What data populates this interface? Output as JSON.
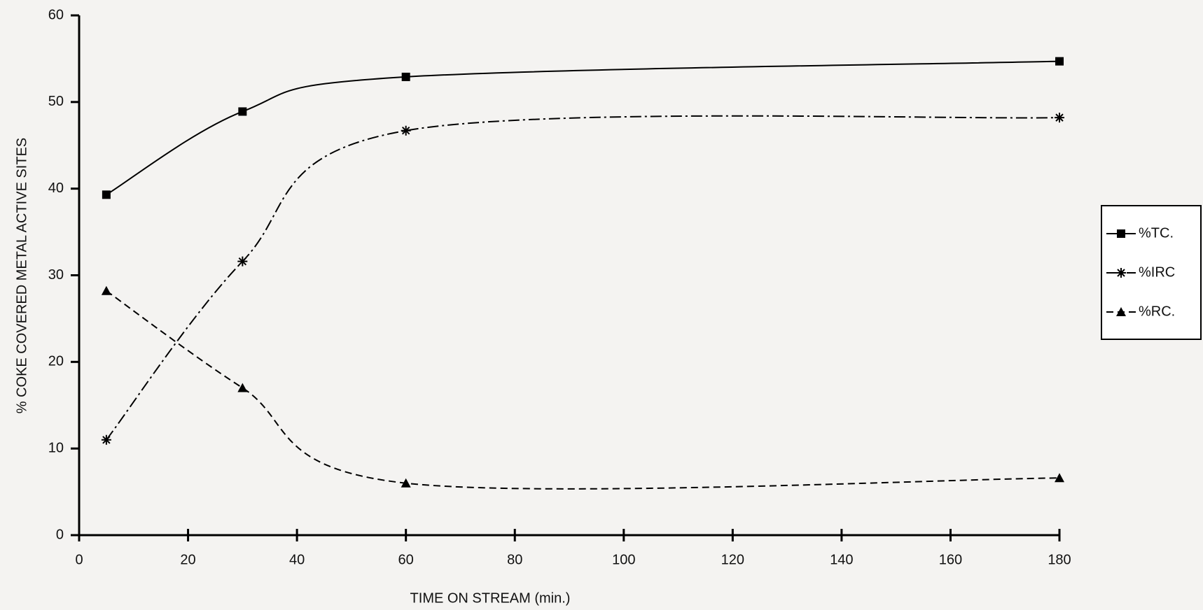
{
  "chart_data": {
    "type": "line",
    "x_label": "TIME ON STREAM (min.)",
    "y_label": "% COKE COVERED METAL ACTIVE SITES",
    "x": [
      5,
      30,
      60,
      180
    ],
    "series": [
      {
        "name": "%TC.",
        "color": "#000000",
        "marker": "square",
        "dash": "solid",
        "values": [
          39.3,
          48.9,
          52.9,
          54.7
        ]
      },
      {
        "name": "%IRC",
        "color": "#000000",
        "marker": "asterisk",
        "dash": "dashdot",
        "values": [
          11,
          31.6,
          46.7,
          48.2
        ]
      },
      {
        "name": "%RC.",
        "color": "#000000",
        "marker": "triangle",
        "dash": "dashed",
        "values": [
          28.2,
          17,
          6,
          6.6
        ]
      }
    ],
    "xlim": [
      0,
      180
    ],
    "ylim": [
      0,
      60
    ],
    "xticks": [
      0,
      20,
      40,
      60,
      80,
      100,
      120,
      140,
      160,
      180
    ],
    "yticks": [
      0,
      10,
      20,
      30,
      40,
      50,
      60
    ],
    "legend": "right"
  }
}
